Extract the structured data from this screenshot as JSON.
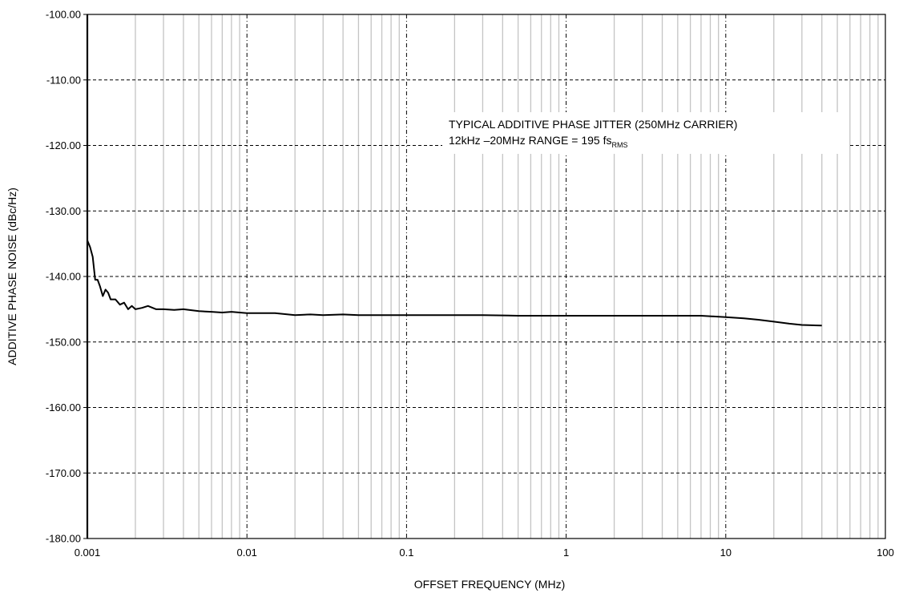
{
  "chart_data": {
    "type": "line",
    "title": "",
    "xlabel": "OFFSET FREQUENCY (MHz)",
    "ylabel": "ADDITIVE PHASE NOISE (dBc/Hz)",
    "x_scale": "log",
    "xlim": [
      0.001,
      100
    ],
    "ylim": [
      -180,
      -100
    ],
    "x_ticks": [
      0.001,
      0.01,
      0.1,
      1,
      10,
      100
    ],
    "x_tick_labels": [
      "0.001",
      "0.01",
      "0.1",
      "1",
      "10",
      "100"
    ],
    "y_ticks": [
      -100,
      -110,
      -120,
      -130,
      -140,
      -150,
      -160,
      -170,
      -180
    ],
    "y_tick_labels": [
      "-100.00",
      "-110.00",
      "-120.00",
      "-130.00",
      "-140.00",
      "-150.00",
      "-160.00",
      "-170.00",
      "-180.00"
    ],
    "grid": true,
    "legend": "none",
    "annotation": {
      "line1": "TYPICAL ADDITIVE PHASE JITTER (250MHz CARRIER)",
      "line2_prefix": "12kHz –20MHz RANGE = 195 fs",
      "line2_sub": "RMS"
    },
    "series": [
      {
        "color": "#000000",
        "x": [
          0.001,
          0.00104,
          0.00108,
          0.00112,
          0.00116,
          0.0012,
          0.00125,
          0.0013,
          0.00135,
          0.0014,
          0.0015,
          0.0016,
          0.0017,
          0.0018,
          0.0019,
          0.002,
          0.0022,
          0.0024,
          0.0027,
          0.003,
          0.0035,
          0.004,
          0.005,
          0.006,
          0.007,
          0.008,
          0.009,
          0.01,
          0.012,
          0.015,
          0.02,
          0.025,
          0.03,
          0.04,
          0.05,
          0.07,
          0.1,
          0.15,
          0.2,
          0.3,
          0.5,
          0.7,
          1,
          2,
          3,
          5,
          7,
          10,
          13,
          16,
          20,
          25,
          30,
          40
        ],
        "y": [
          -134.5,
          -135.5,
          -137.0,
          -140.5,
          -140.5,
          -141.5,
          -143.0,
          -142.0,
          -142.5,
          -143.5,
          -143.5,
          -144.3,
          -144.0,
          -145.0,
          -144.5,
          -145.0,
          -144.8,
          -144.5,
          -145.0,
          -145.0,
          -145.1,
          -145.0,
          -145.3,
          -145.4,
          -145.5,
          -145.4,
          -145.5,
          -145.6,
          -145.6,
          -145.6,
          -145.9,
          -145.8,
          -145.9,
          -145.8,
          -145.9,
          -145.9,
          -145.9,
          -145.9,
          -145.9,
          -145.9,
          -146.0,
          -146.0,
          -146.0,
          -146.0,
          -146.0,
          -146.0,
          -146.0,
          -146.2,
          -146.4,
          -146.6,
          -146.9,
          -147.2,
          -147.4,
          -147.5
        ]
      }
    ]
  }
}
